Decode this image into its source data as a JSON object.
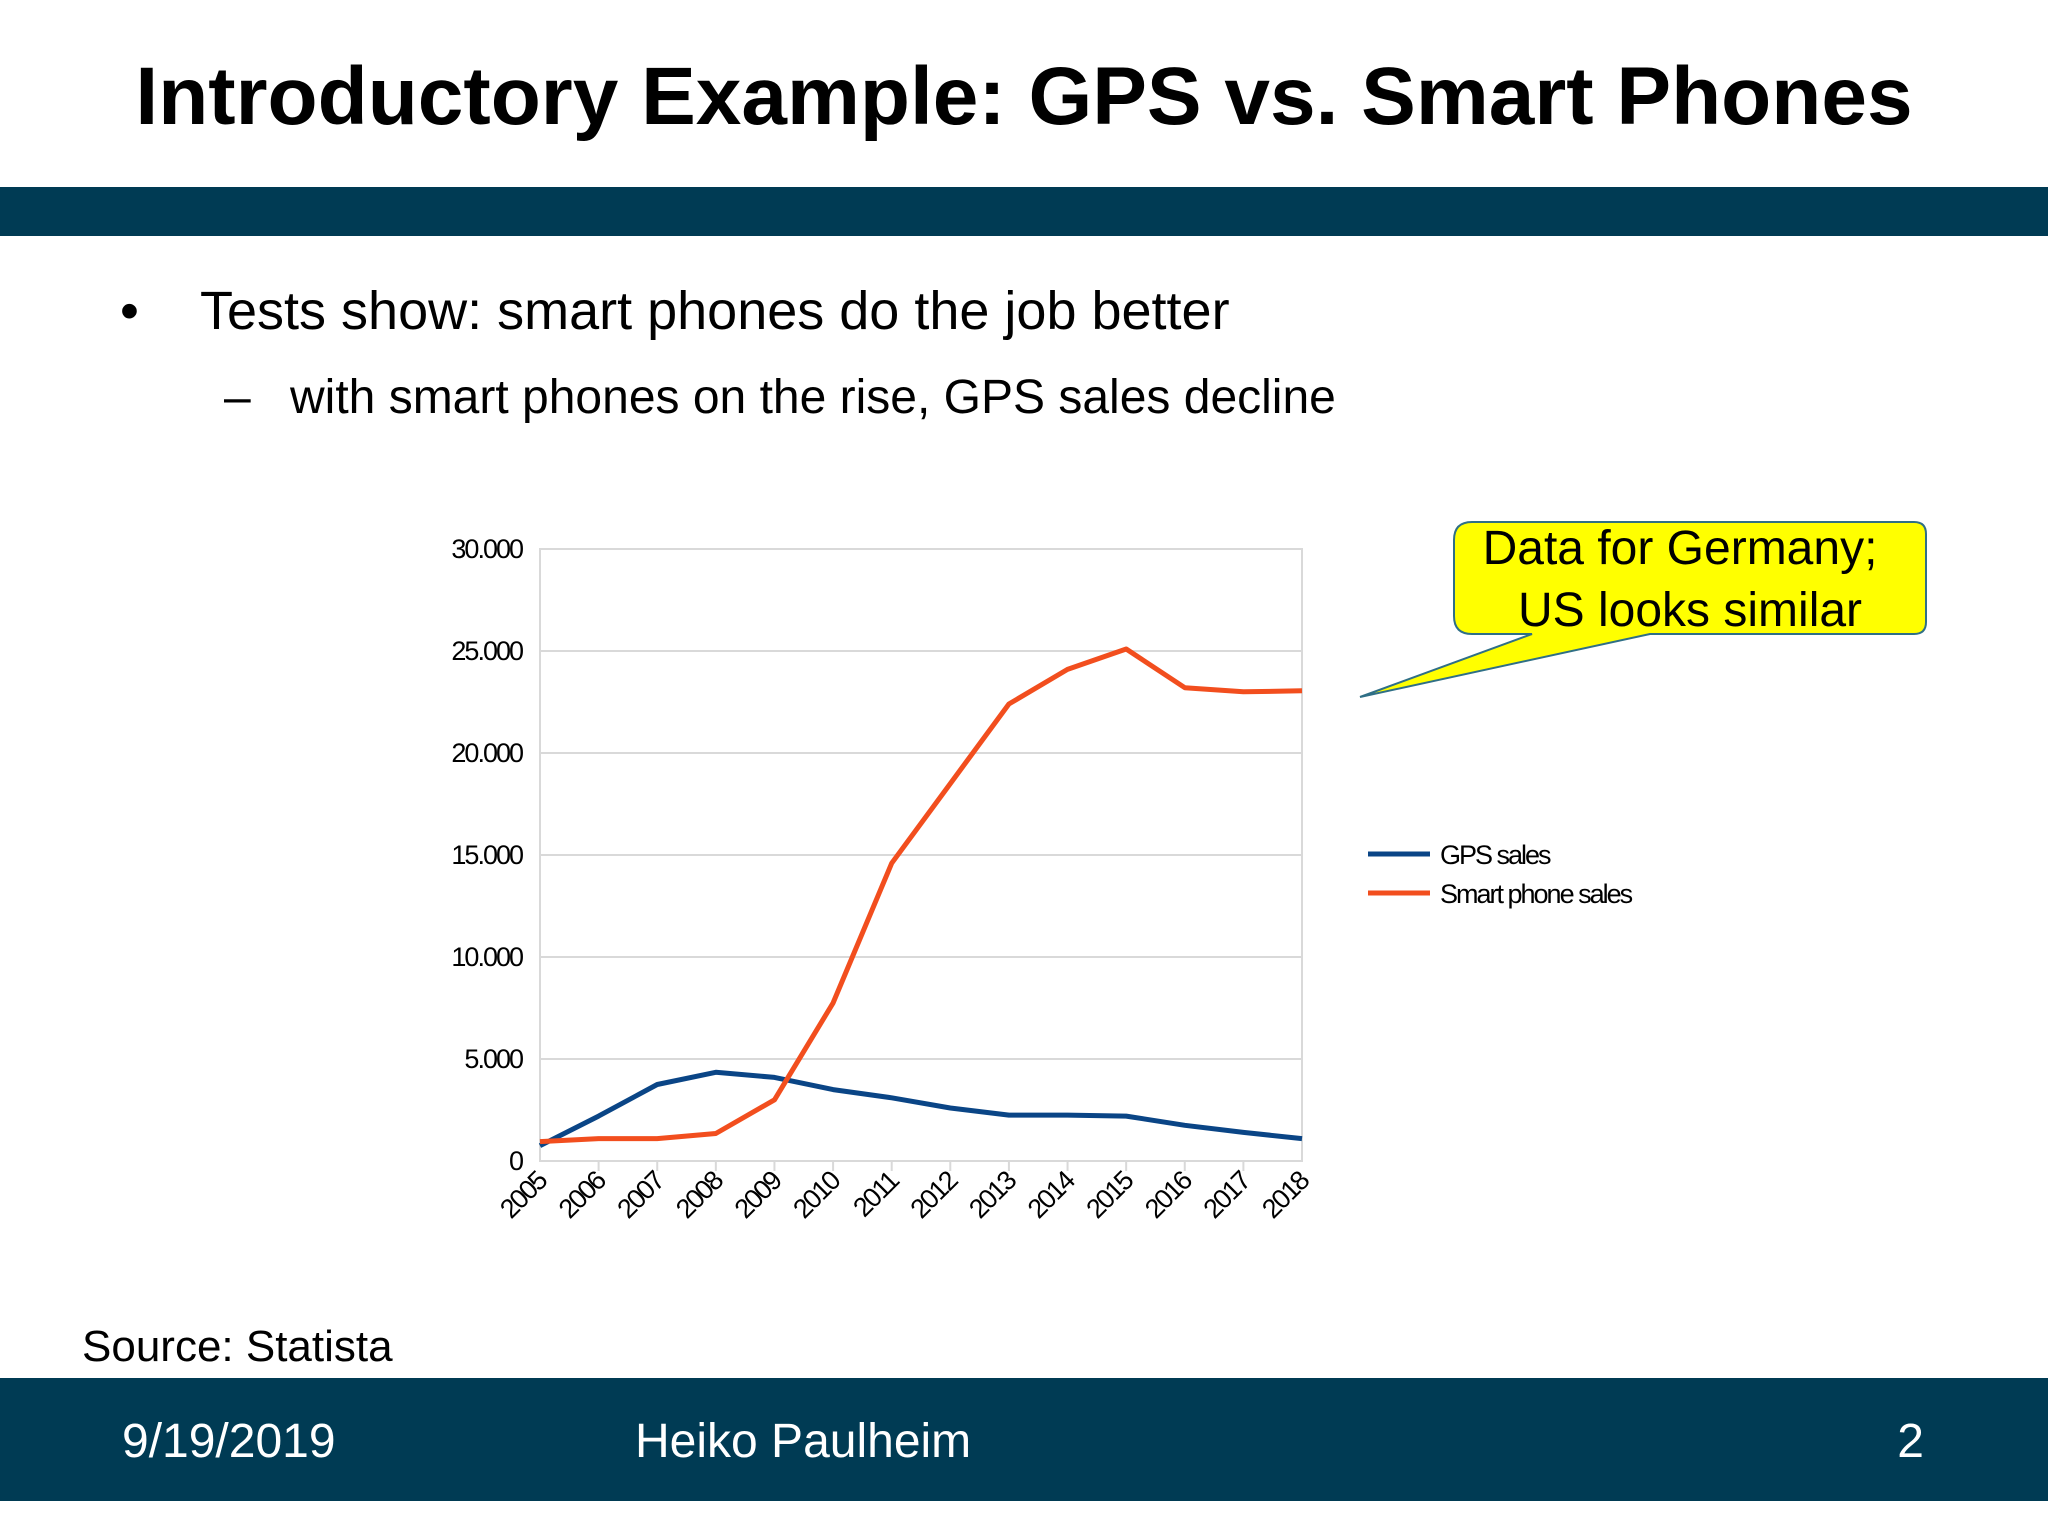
{
  "slide": {
    "title": "Introductory Example: GPS vs. Smart Phones",
    "bullet_symbol": "•",
    "bullet": "Tests show: smart phones do the job better",
    "sub_bullet_symbol": "–",
    "sub_bullet": "with smart phones on the rise, GPS sales decline",
    "callout_line1": "Data for Germany;",
    "callout_line2": "US looks similar",
    "source": "Source: Statista"
  },
  "footer": {
    "date": "9/19/2019",
    "author": "Heiko Paulheim",
    "page": "2"
  },
  "colors": {
    "bar": "#003b54",
    "gps": "#0a4586",
    "smartphone": "#f24e1e",
    "callout_fill": "#ffff00",
    "callout_stroke": "#2f6f86",
    "grid": "#d9d9d9"
  },
  "chart_data": {
    "type": "line",
    "title": "",
    "xlabel": "",
    "ylabel": "",
    "categories": [
      "2005",
      "2006",
      "2007",
      "2008",
      "2009",
      "2010",
      "2011",
      "2012",
      "2013",
      "2014",
      "2015",
      "2016",
      "2017",
      "2018"
    ],
    "series": [
      {
        "name": "GPS sales",
        "color": "#0a4586",
        "values": [
          750,
          2200,
          3750,
          4350,
          4100,
          3500,
          3100,
          2600,
          2250,
          2250,
          2200,
          1750,
          1400,
          1100
        ]
      },
      {
        "name": "Smart phone sales",
        "color": "#f24e1e",
        "values": [
          950,
          1100,
          1100,
          1350,
          3000,
          7750,
          14600,
          18500,
          22400,
          24100,
          25100,
          23200,
          23000,
          23050
        ]
      }
    ],
    "ylim": [
      0,
      30000
    ],
    "y_ticks": [
      0,
      5000,
      10000,
      15000,
      20000,
      25000,
      30000
    ],
    "y_tick_labels": [
      "0",
      "5.000",
      "10.000",
      "15.000",
      "20.000",
      "25.000",
      "30.000"
    ],
    "grid": true,
    "legend_position": "right"
  }
}
